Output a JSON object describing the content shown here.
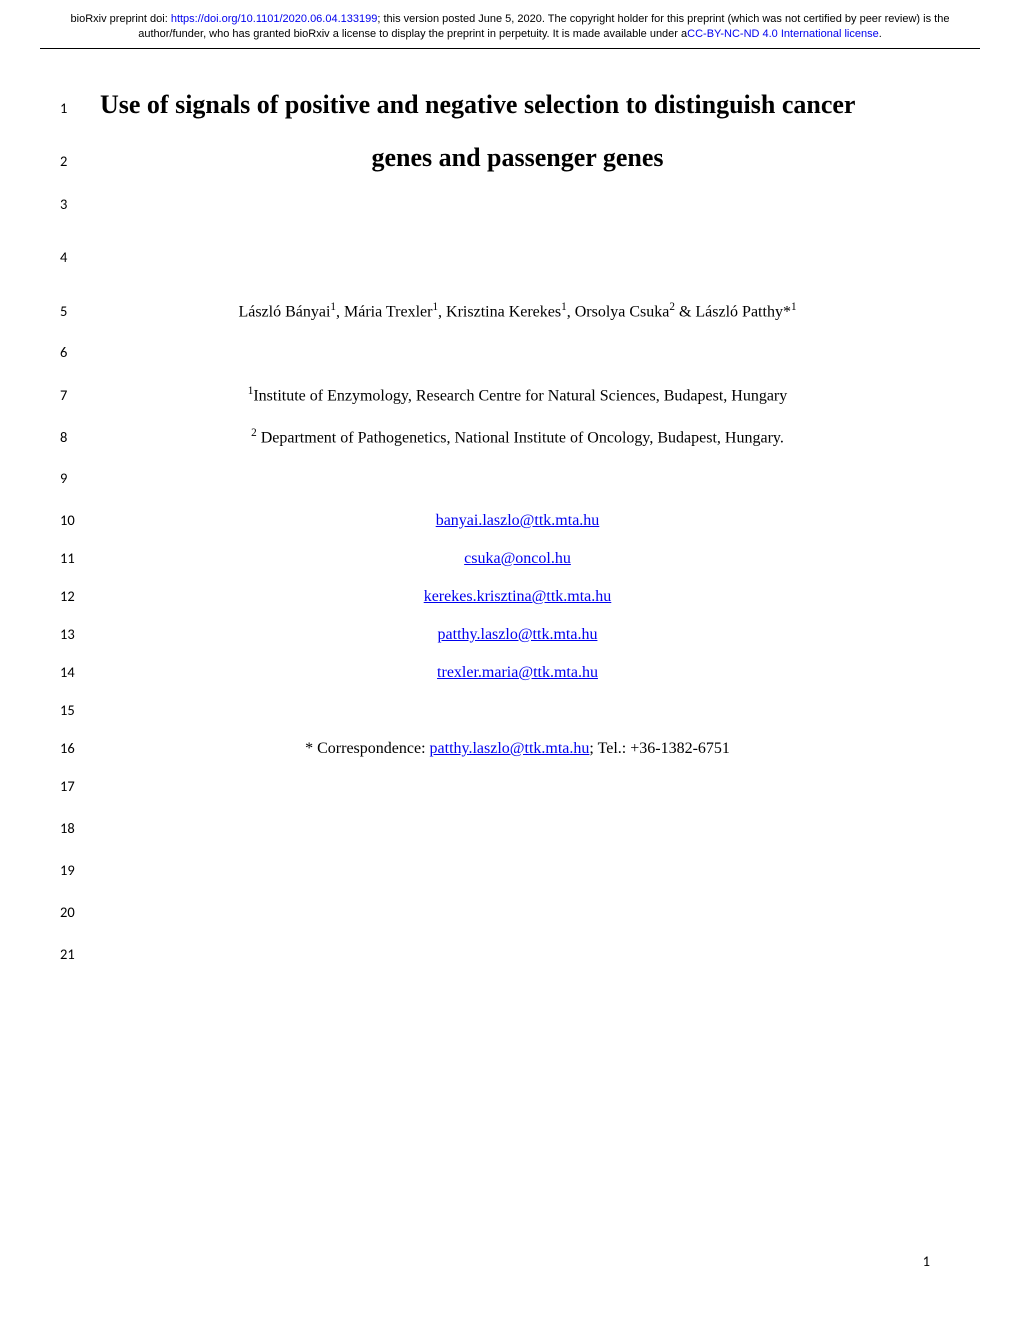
{
  "header": {
    "text_before_doi": "bioRxiv preprint doi: ",
    "doi_url": "https://doi.org/10.1101/2020.06.04.133199",
    "text_after_doi": "; this version posted June 5, 2020. The copyright holder for this preprint (which was not certified by peer review) is the author/funder, who has granted bioRxiv a license to display the preprint in perpetuity. It is made available under a",
    "license_text": "CC-BY-NC-ND 4.0 International license",
    "text_after_license": "."
  },
  "title_line_1": "Use of signals of positive and negative selection to distinguish cancer",
  "title_line_2": "genes and passenger genes",
  "authors_html": "László Bányai<sup>1</sup>, Mária Trexler<sup>1</sup>, Krisztina Kerekes<sup>1</sup>, Orsolya Csuka<sup>2</sup> & László Patthy*<sup>1</sup>",
  "affiliation_1": "<sup>1</sup>Institute of Enzymology, Research Centre for Natural Sciences, Budapest, Hungary",
  "affiliation_2": "<sup>2</sup> Department of Pathogenetics, National Institute of Oncology, Budapest, Hungary.",
  "emails": {
    "e1": "banyai.laszlo@ttk.mta.hu",
    "e2": "csuka@oncol.hu",
    "e3": "kerekes.krisztina@ttk.mta.hu",
    "e4": "patthy.laszlo@ttk.mta.hu",
    "e5": "trexler.maria@ttk.mta.hu"
  },
  "correspondence": {
    "prefix": "* Correspondence: ",
    "email": "patthy.laszlo@ttk.mta.hu",
    "suffix": "; Tel.: +36-1382-6751"
  },
  "line_numbers": {
    "l1": "1",
    "l2": "2",
    "l3": "3",
    "l4": "4",
    "l5": "5",
    "l6": "6",
    "l7": "7",
    "l8": "8",
    "l9": "9",
    "l10": "10",
    "l11": "11",
    "l12": "12",
    "l13": "13",
    "l14": "14",
    "l15": "15",
    "l16": "16",
    "l17": "17",
    "l18": "18",
    "l19": "19",
    "l20": "20",
    "l21": "21"
  },
  "page_number": "1",
  "colors": {
    "link": "#0000ee",
    "text": "#000000",
    "background": "#ffffff"
  },
  "fonts": {
    "body": "Times New Roman",
    "header": "Arial",
    "line_num": "Calibri",
    "title_size_pt": 26,
    "body_size_pt": 16,
    "header_size_pt": 11,
    "linenum_size_pt": 14.5
  }
}
